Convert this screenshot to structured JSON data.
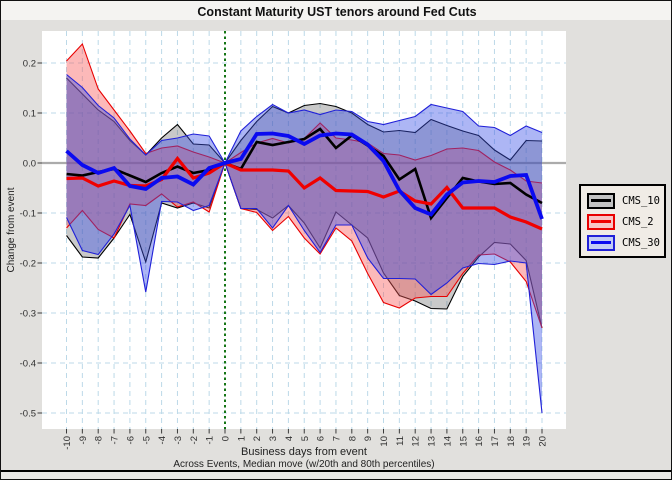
{
  "colors": {
    "canvas": "#E1E0DD",
    "plot_background": "#FFFFFF",
    "grid": "#BCD9E8",
    "zero_line": "#ABABAB",
    "event_line": "#157515",
    "tick": "#3A3A3A",
    "tick_label": "#303030",
    "legend_background": "#F0ECE6",
    "frame": "#000000"
  },
  "chart_data": {
    "type": "line",
    "title": "Constant Maturity UST tenors around Fed Cuts",
    "xlabel": "Business days from event",
    "ylabel": "Change from event",
    "caption": "Across Events, Median move (w/20th and 80th percentiles)",
    "x": [
      -10,
      -9,
      -8,
      -7,
      -6,
      -5,
      -4,
      -3,
      -2,
      -1,
      0,
      1,
      2,
      3,
      4,
      5,
      6,
      7,
      8,
      9,
      10,
      11,
      12,
      13,
      14,
      15,
      16,
      17,
      18,
      19,
      20
    ],
    "yticks": [
      0.2,
      0.1,
      0.0,
      -0.1,
      -0.2,
      -0.3,
      -0.4,
      -0.5
    ],
    "xlim": [
      -11.5,
      21.5
    ],
    "ylim": [
      -0.532,
      0.264
    ],
    "grid": "dashed",
    "legend_position": "right",
    "event_line_x": 0,
    "series": [
      {
        "name": "CMS_10",
        "line_color": "#000000",
        "edge_color": "#000000",
        "fill_color": "rgba(90,90,90,0.33)",
        "key_fill": "#C3C3C3",
        "line_width": 2.6,
        "median": [
          -0.022,
          -0.025,
          -0.018,
          -0.012,
          -0.025,
          -0.038,
          -0.02,
          -0.007,
          -0.02,
          -0.014,
          0,
          -0.012,
          0.042,
          0.036,
          0.042,
          0.048,
          0.068,
          0.03,
          0.055,
          0.035,
          0.014,
          -0.033,
          -0.012,
          -0.11,
          -0.07,
          -0.03,
          -0.037,
          -0.042,
          -0.04,
          -0.063,
          -0.08
        ],
        "p80": [
          0.17,
          0.138,
          0.106,
          0.083,
          0.045,
          0.016,
          0.05,
          0.077,
          0.038,
          0.036,
          0,
          0.045,
          0.083,
          0.113,
          0.1,
          0.115,
          0.119,
          0.113,
          0.1,
          0.077,
          0.062,
          0.065,
          0.061,
          0.087,
          0.075,
          0.064,
          0.055,
          0.026,
          0.006,
          0.045,
          0.044
        ],
        "p20": [
          -0.145,
          -0.188,
          -0.19,
          -0.15,
          -0.103,
          -0.198,
          -0.08,
          -0.09,
          -0.08,
          -0.09,
          0,
          -0.091,
          -0.093,
          -0.11,
          -0.085,
          -0.12,
          -0.17,
          -0.098,
          -0.124,
          -0.15,
          -0.22,
          -0.265,
          -0.276,
          -0.291,
          -0.292,
          -0.227,
          -0.188,
          -0.159,
          -0.162,
          -0.195,
          -0.33
        ]
      },
      {
        "name": "CMS_2",
        "line_color": "#F00000",
        "edge_color": "#E80000",
        "fill_color": "rgba(248,88,88,0.42)",
        "key_fill": "#F8C5C5",
        "line_width": 3.2,
        "median": [
          -0.031,
          -0.03,
          -0.046,
          -0.036,
          -0.045,
          -0.046,
          -0.033,
          0.009,
          -0.03,
          -0.02,
          0,
          -0.014,
          -0.014,
          -0.014,
          -0.016,
          -0.05,
          -0.03,
          -0.055,
          -0.056,
          -0.057,
          -0.068,
          -0.056,
          -0.076,
          -0.082,
          -0.049,
          -0.09,
          -0.09,
          -0.09,
          -0.108,
          -0.118,
          -0.132
        ],
        "p80": [
          0.204,
          0.238,
          0.148,
          0.106,
          0.064,
          0.019,
          0.03,
          0.034,
          0.022,
          0.012,
          0,
          0.021,
          0.04,
          0.049,
          0.04,
          0.049,
          0.08,
          0.05,
          0.046,
          0.04,
          0.019,
          0.016,
          0.006,
          0.015,
          0.028,
          0.03,
          0.025,
          0.002,
          -0.014,
          -0.036,
          -0.04
        ],
        "p20": [
          -0.13,
          -0.095,
          -0.133,
          -0.15,
          -0.082,
          -0.085,
          -0.062,
          -0.088,
          -0.078,
          -0.098,
          0,
          -0.091,
          -0.099,
          -0.135,
          -0.107,
          -0.15,
          -0.182,
          -0.13,
          -0.156,
          -0.221,
          -0.279,
          -0.29,
          -0.27,
          -0.267,
          -0.267,
          -0.221,
          -0.184,
          -0.182,
          -0.198,
          -0.237,
          -0.33
        ]
      },
      {
        "name": "CMS_30",
        "line_color": "#0A0AF0",
        "edge_color": "#2020D8",
        "fill_color": "rgba(60,80,230,0.42)",
        "key_fill": "#C3CCF5",
        "line_width": 3.8,
        "median": [
          0.024,
          -0.004,
          -0.02,
          -0.01,
          -0.046,
          -0.052,
          -0.03,
          -0.027,
          -0.043,
          -0.01,
          0,
          0.008,
          0.058,
          0.059,
          0.054,
          0.038,
          0.055,
          0.059,
          0.057,
          0.037,
          0.004,
          -0.055,
          -0.09,
          -0.103,
          -0.063,
          -0.039,
          -0.036,
          -0.038,
          -0.026,
          -0.024,
          -0.112
        ],
        "p80": [
          0.177,
          0.151,
          0.115,
          0.09,
          0.048,
          0.016,
          0.045,
          0.05,
          0.058,
          0.054,
          0,
          0.064,
          0.093,
          0.117,
          0.1,
          0.106,
          0.097,
          0.106,
          0.103,
          0.083,
          0.077,
          0.085,
          0.093,
          0.117,
          0.11,
          0.103,
          0.074,
          0.071,
          0.055,
          0.074,
          0.061
        ],
        "p20": [
          -0.109,
          -0.175,
          -0.183,
          -0.142,
          -0.085,
          -0.258,
          -0.077,
          -0.078,
          -0.095,
          -0.085,
          0,
          -0.091,
          -0.091,
          -0.13,
          -0.085,
          -0.135,
          -0.179,
          -0.124,
          -0.124,
          -0.19,
          -0.231,
          -0.231,
          -0.232,
          -0.263,
          -0.24,
          -0.21,
          -0.201,
          -0.203,
          -0.196,
          -0.2,
          -0.5
        ]
      }
    ],
    "legend_entries": [
      "CMS_10",
      "CMS_2",
      "CMS_30"
    ]
  }
}
